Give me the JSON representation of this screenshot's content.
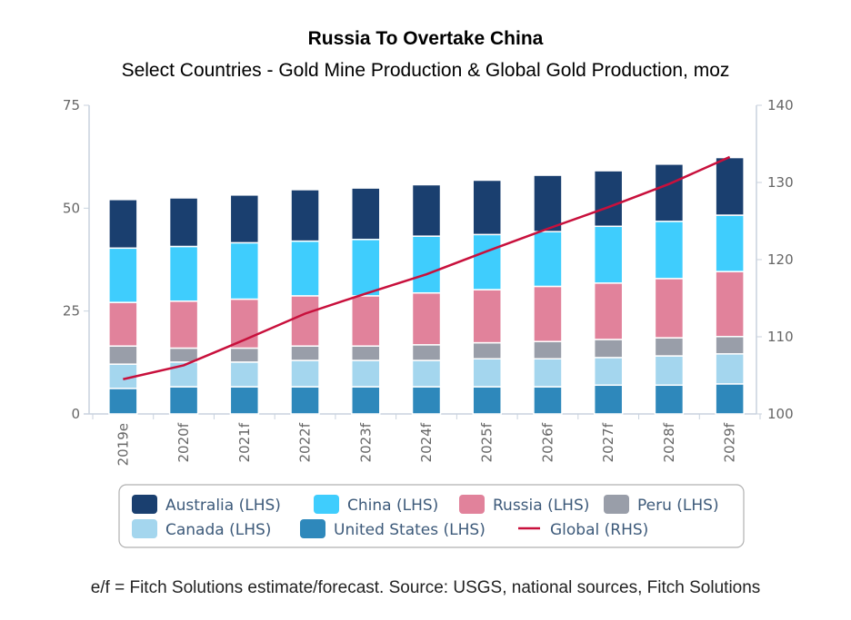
{
  "chart_data": {
    "type": "bar",
    "stacked": true,
    "title": "Russia To Overtake China",
    "subtitle": "Select Countries - Gold Mine Production & Global Gold Production, moz",
    "footer": "e/f = Fitch Solutions estimate/forecast. Source: USGS, national sources, Fitch Solutions",
    "categories": [
      "2019e",
      "2020f",
      "2021f",
      "2022f",
      "2023f",
      "2024f",
      "2025f",
      "2026f",
      "2027f",
      "2028f",
      "2029f"
    ],
    "ylim_left": [
      0,
      75
    ],
    "yticks_left": [
      0,
      25,
      50,
      75
    ],
    "ylim_right": [
      100,
      140
    ],
    "yticks_right": [
      100,
      110,
      120,
      130,
      140
    ],
    "grid": false,
    "legend_placement": "bottom",
    "series": [
      {
        "name": "United States (LHS)",
        "axis": "left",
        "color": "#2e88bb",
        "values": [
          6.2,
          6.6,
          6.6,
          6.6,
          6.6,
          6.6,
          6.6,
          6.6,
          7.0,
          7.0,
          7.3
        ]
      },
      {
        "name": "Canada (LHS)",
        "axis": "left",
        "color": "#a4d6ee",
        "values": [
          5.9,
          6.0,
          6.0,
          6.4,
          6.4,
          6.4,
          6.8,
          6.8,
          6.7,
          7.1,
          7.3
        ]
      },
      {
        "name": "Peru (LHS)",
        "axis": "left",
        "color": "#999ea9",
        "values": [
          4.4,
          3.4,
          3.4,
          3.5,
          3.5,
          3.8,
          3.9,
          4.2,
          4.4,
          4.4,
          4.2
        ]
      },
      {
        "name": "Russia (LHS)",
        "axis": "left",
        "color": "#e1829b",
        "values": [
          10.6,
          11.4,
          11.9,
          12.2,
          12.2,
          12.6,
          12.9,
          13.4,
          13.7,
          14.4,
          15.8
        ]
      },
      {
        "name": "China (LHS)",
        "axis": "left",
        "color": "#3fcdfd",
        "values": [
          13.2,
          13.3,
          13.7,
          13.3,
          13.7,
          13.8,
          13.4,
          13.3,
          13.8,
          13.9,
          13.7
        ]
      },
      {
        "name": "Australia (LHS)",
        "axis": "left",
        "color": "#1a3f6f",
        "values": [
          11.8,
          11.8,
          11.6,
          12.5,
          12.5,
          12.5,
          13.2,
          13.7,
          13.5,
          13.9,
          14.0
        ]
      },
      {
        "name": "Global (RHS)",
        "axis": "right",
        "type": "line",
        "color": "#c8103c",
        "values": [
          104.5,
          106.3,
          109.6,
          113.0,
          115.6,
          118.1,
          121.1,
          124.0,
          126.8,
          129.8,
          133.3
        ]
      }
    ],
    "legend_order": [
      "Australia (LHS)",
      "China (LHS)",
      "Russia (LHS)",
      "Peru (LHS)",
      "Canada (LHS)",
      "United States (LHS)",
      "Global (RHS)"
    ]
  }
}
